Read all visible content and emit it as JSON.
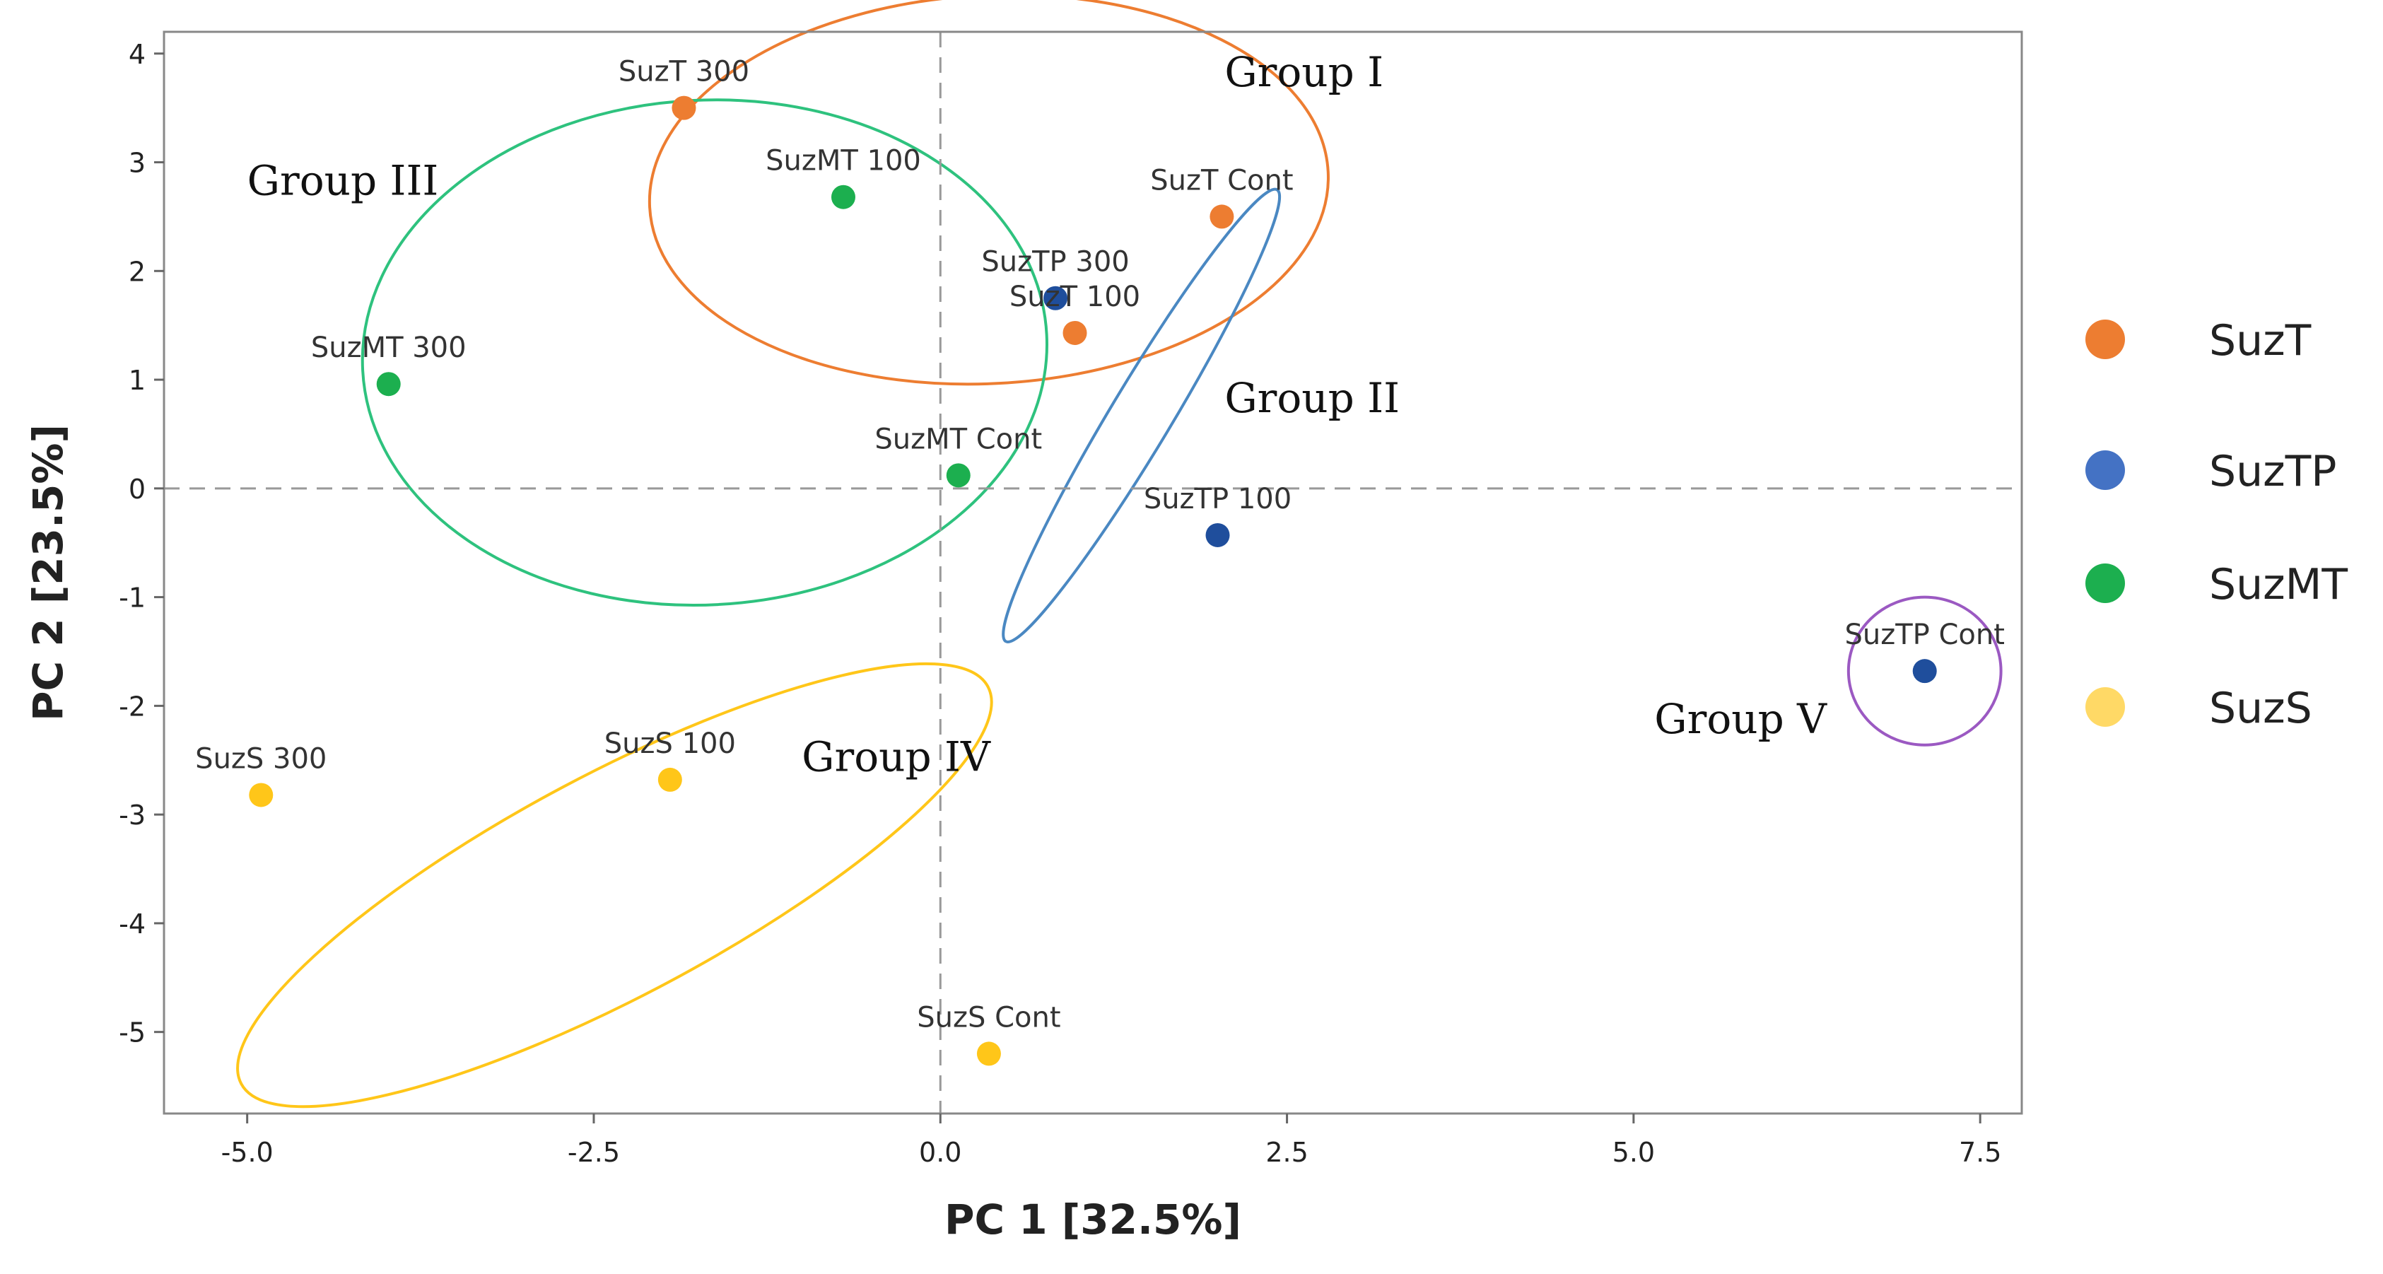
{
  "chart_data": {
    "type": "scatter",
    "xlabel": "PC 1 [32.5%]",
    "ylabel": "PC 2 [23.5%]",
    "xlim": [
      -5.6,
      7.8
    ],
    "ylim": [
      -5.75,
      4.2
    ],
    "xticks": [
      -5.0,
      -2.5,
      0.0,
      2.5,
      5.0,
      7.5
    ],
    "xtick_labels": [
      "-5.0",
      "-2.5",
      "0.0",
      "2.5",
      "5.0",
      "7.5"
    ],
    "yticks": [
      4,
      3,
      2,
      1,
      0,
      -1,
      -2,
      -3,
      -4,
      -5
    ],
    "ytick_labels": [
      "4",
      "3",
      "2",
      "1",
      "0",
      "-1",
      "-2",
      "-3",
      "-4",
      "-5"
    ],
    "reference_lines": {
      "x": 0,
      "y": 0,
      "style": "dashed"
    },
    "legend_position": "right",
    "series": [
      {
        "name": "SuzT",
        "color": "#ED7D31",
        "points": [
          {
            "label": "SuzT 300",
            "x": -1.85,
            "y": 3.5
          },
          {
            "label": "SuzT Cont",
            "x": 2.03,
            "y": 2.5
          },
          {
            "label": "SuzT 100",
            "x": 0.97,
            "y": 1.43
          }
        ]
      },
      {
        "name": "SuzTP",
        "color": "#4472C4",
        "marker_color": "#1F4E9C",
        "points": [
          {
            "label": "SuzTP 300",
            "x": 0.83,
            "y": 1.75
          },
          {
            "label": "SuzTP 100",
            "x": 2.0,
            "y": -0.43
          },
          {
            "label": "SuzTP Cont",
            "x": 7.1,
            "y": -1.68
          }
        ]
      },
      {
        "name": "SuzMT",
        "color": "#1CAF4F",
        "points": [
          {
            "label": "SuzMT 100",
            "x": -0.7,
            "y": 2.68
          },
          {
            "label": "SuzMT 300",
            "x": -3.98,
            "y": 0.96
          },
          {
            "label": "SuzMT Cont",
            "x": 0.13,
            "y": 0.12
          }
        ]
      },
      {
        "name": "SuzS",
        "color": "#FFC619",
        "legend_color": "#FFD966",
        "points": [
          {
            "label": "SuzS 300",
            "x": -4.9,
            "y": -2.82
          },
          {
            "label": "SuzS 100",
            "x": -1.95,
            "y": -2.68
          },
          {
            "label": "SuzS Cont",
            "x": 0.35,
            "y": -5.2
          }
        ]
      }
    ],
    "ellipses": [
      {
        "name": "Group I",
        "color": "#ED7D31",
        "cx": 0.35,
        "cy": 2.75,
        "rx": 2.45,
        "ry": 1.4,
        "angle": -3
      },
      {
        "name": "Group II",
        "color": "#4A88C2",
        "cx": 1.45,
        "cy": 0.67,
        "rx": 1.9,
        "ry": 0.22,
        "angle": -59
      },
      {
        "name": "Group III",
        "color": "#2EC27E",
        "cx": -1.7,
        "cy": 1.25,
        "rx": 2.47,
        "ry": 1.82,
        "angle": -3
      },
      {
        "name": "Group IV",
        "color": "#FFC619",
        "cx": -2.35,
        "cy": -3.65,
        "rx": 3.05,
        "ry": 0.8,
        "angle": -28
      },
      {
        "name": "Group V",
        "color": "#9B59C2",
        "cx": 7.1,
        "cy": -1.68,
        "rx": 0.55,
        "ry": 0.68,
        "angle": 0
      }
    ],
    "group_labels": [
      {
        "text": "Group I",
        "x": 2.05,
        "y": 3.7
      },
      {
        "text": "Group II",
        "x": 2.05,
        "y": 0.7
      },
      {
        "text": "Group III",
        "x": -5.0,
        "y": 2.7
      },
      {
        "text": "Group IV",
        "x": -1.0,
        "y": -2.6
      },
      {
        "text": "Group V",
        "x": 5.15,
        "y": -2.25
      }
    ]
  }
}
